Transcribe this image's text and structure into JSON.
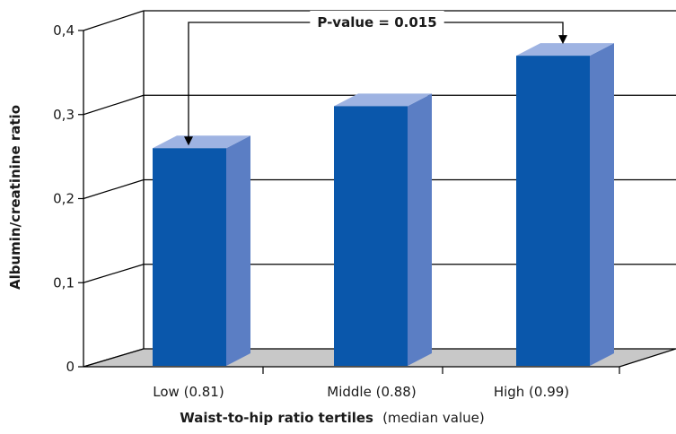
{
  "chart_data": {
    "type": "bar",
    "categories": [
      "Low (0.81)",
      "Middle (0.88)",
      "High (0.99)"
    ],
    "values": [
      0.26,
      0.31,
      0.37
    ],
    "ylim": [
      0,
      0.4
    ],
    "yticks": [
      0,
      0.1,
      0.2,
      0.3,
      0.4
    ],
    "ytick_labels": [
      "0",
      "0,1",
      "0,2",
      "0,3",
      "0,4"
    ],
    "ylabel": "Albumin/creatinine ratio",
    "xlabel_bold": "Waist-to-hip ratio tertiles",
    "xlabel_normal": "(median value)",
    "annotation": "P-value = 0.015",
    "grid": true,
    "colors": {
      "bar_front": "#0a57ab",
      "bar_side": "#5b7ec4",
      "bar_top": "#9eb3e2",
      "floor": "#c8c8c8"
    }
  }
}
